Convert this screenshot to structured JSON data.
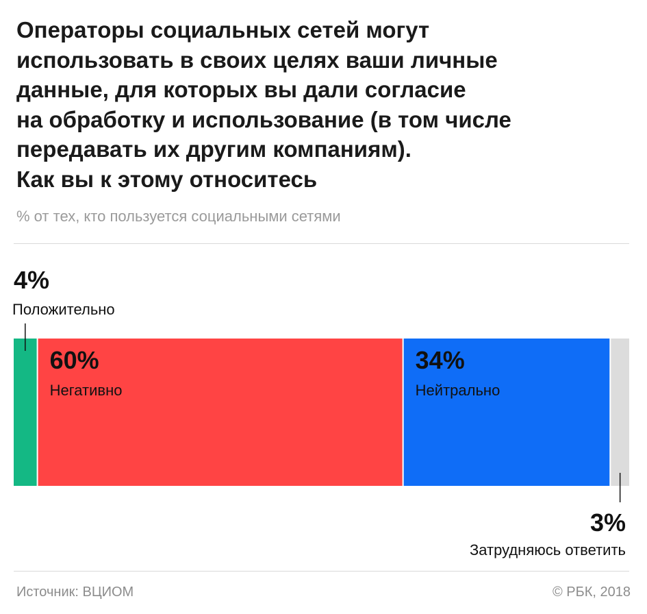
{
  "title_lines": [
    "Операторы социальных сетей могут",
    "использовать в своих целях ваши личные",
    "данные, для которых вы дали согласие",
    "на обработку и использование (в том числе",
    "передавать их другим компаниям).",
    "Как вы к этому относитесь"
  ],
  "subtitle": "% от тех, кто пользуется социальными сетями",
  "source": "Источник: ВЦИОМ",
  "copyright": "© РБК, 2018",
  "chart_data": {
    "type": "bar",
    "orientation": "horizontal-stacked-100",
    "unit": "%",
    "segments": [
      {
        "label": "Положительно",
        "value": 4,
        "value_label": "4%",
        "color": "#14b884"
      },
      {
        "label": "Негативно",
        "value": 60,
        "value_label": "60%",
        "color": "#ff4444"
      },
      {
        "label": "Нейтрально",
        "value": 34,
        "value_label": "34%",
        "color": "#0f6df7"
      },
      {
        "label": "Затрудняюсь ответить",
        "value": 3,
        "value_label": "3%",
        "color": "#dcdcdc"
      }
    ]
  }
}
